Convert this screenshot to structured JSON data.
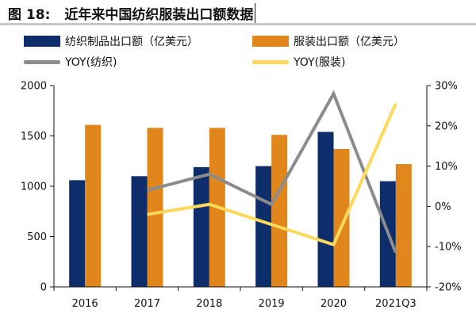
{
  "figure": {
    "label": "图 18:",
    "title": "近年来中国纺织服装出口额数据"
  },
  "colors": {
    "textile_bar": "#0d2d6b",
    "apparel_bar": "#e0861b",
    "textile_yoy": "#8c8c8c",
    "apparel_yoy": "#fcd95a",
    "axis": "#111111"
  },
  "chart_data": {
    "type": "bar",
    "title": "近年来中国纺织服装出口额数据",
    "categories": [
      "2016",
      "2017",
      "2018",
      "2019",
      "2020",
      "2021Q3"
    ],
    "series": [
      {
        "name": "纺织制品出口额（亿美元）",
        "kind": "bar",
        "axis": "left",
        "values": [
          1060,
          1100,
          1190,
          1200,
          1540,
          1050
        ]
      },
      {
        "name": "服装出口额（亿美元）",
        "kind": "bar",
        "axis": "left",
        "values": [
          1610,
          1580,
          1580,
          1510,
          1370,
          1220
        ]
      },
      {
        "name": "YOY(纺织)",
        "kind": "line",
        "axis": "right",
        "values": [
          null,
          4.0,
          8.0,
          0.5,
          28.0,
          -11.5
        ]
      },
      {
        "name": "YOY(服装)",
        "kind": "line",
        "axis": "right",
        "values": [
          null,
          -2.0,
          0.5,
          -4.5,
          -9.5,
          25.5
        ]
      }
    ],
    "y_left": {
      "min": 0,
      "max": 2000,
      "ticks": [
        0,
        500,
        1000,
        1500,
        2000
      ]
    },
    "y_right": {
      "min": -20,
      "max": 30,
      "ticks": [
        -20,
        -10,
        0,
        10,
        20,
        30
      ],
      "tick_labels": [
        "-20%",
        "-10%",
        "0%",
        "10%",
        "20%",
        "30%"
      ]
    },
    "legend_position": "top",
    "grid": false
  }
}
